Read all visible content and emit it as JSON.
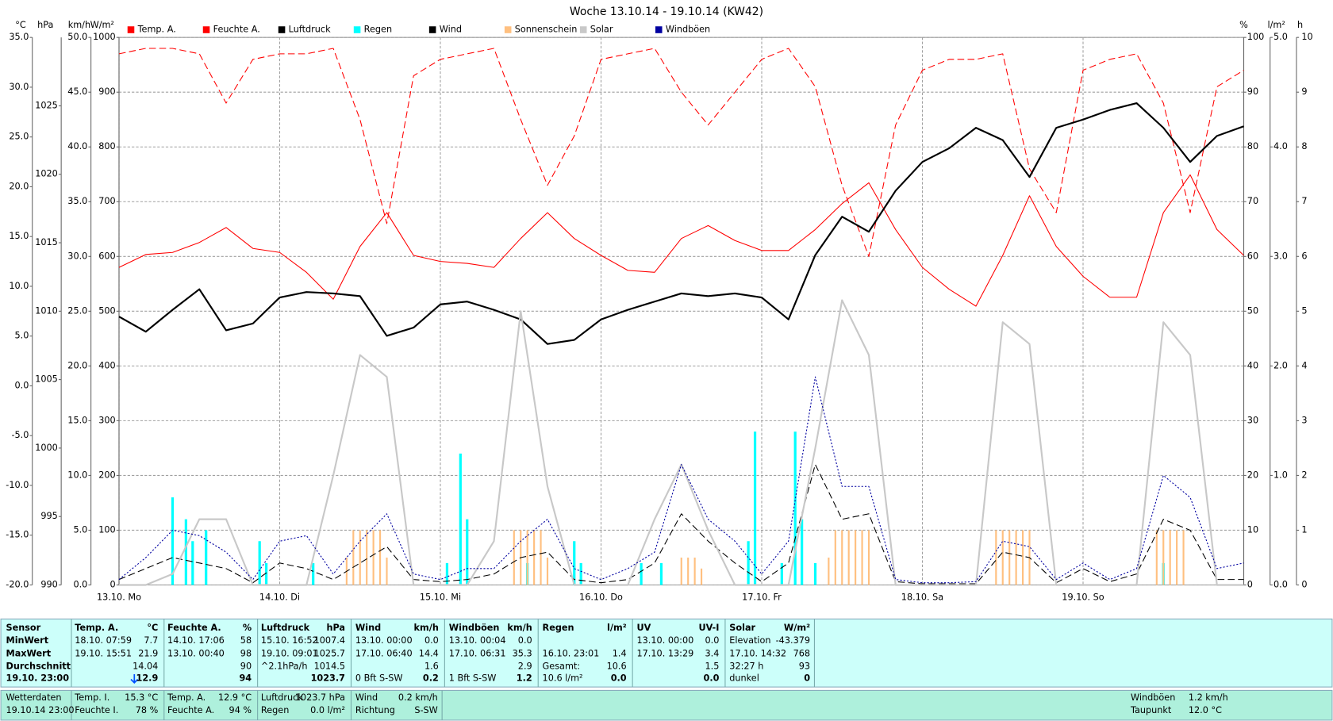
{
  "chart_data": {
    "type": "line",
    "title": "Woche 13.10.14 - 19.10.14 (KW42)",
    "x": [
      0,
      4,
      8,
      12,
      16,
      20,
      24,
      28,
      32,
      36,
      40,
      44,
      48,
      52,
      56,
      60,
      64,
      68,
      72,
      76,
      80,
      84,
      88,
      92,
      96,
      100,
      104,
      108,
      112,
      116,
      120,
      124,
      128,
      132,
      136,
      140,
      144,
      148,
      152,
      156,
      160,
      164,
      168
    ],
    "xlim": [
      0,
      168
    ],
    "xticks": [
      {
        "value": 0,
        "label": "13.10. Mo"
      },
      {
        "value": 24,
        "label": "14.10. Di"
      },
      {
        "value": 48,
        "label": "15.10. Mi"
      },
      {
        "value": 72,
        "label": "16.10. Do"
      },
      {
        "value": 96,
        "label": "17.10. Fr"
      },
      {
        "value": 120,
        "label": "18.10. Sa"
      },
      {
        "value": 144,
        "label": "19.10. So"
      }
    ],
    "grid": true,
    "axes": [
      {
        "unit": "°C",
        "color": "#ff0000",
        "ylim": [
          -20,
          35
        ],
        "yticks": [
          {
            "value": -20,
            "label": "-20.0"
          },
          {
            "value": -15,
            "label": "-15.0"
          },
          {
            "value": -10,
            "label": "-10.0"
          },
          {
            "value": -5,
            "label": "-5.0"
          },
          {
            "value": 0,
            "label": "0.0"
          },
          {
            "value": 5,
            "label": "5.0"
          },
          {
            "value": 10,
            "label": "10.0"
          },
          {
            "value": 15,
            "label": "15.0"
          },
          {
            "value": 20,
            "label": "20.0"
          },
          {
            "value": 25,
            "label": "25.0"
          },
          {
            "value": 30,
            "label": "30.0"
          },
          {
            "value": 35,
            "label": "35.0"
          }
        ]
      },
      {
        "unit": "hPa",
        "color": "#000000",
        "ylim": [
          990,
          1030
        ],
        "yticks": [
          990,
          995,
          1000,
          1005,
          1010,
          1015,
          1020,
          1025
        ]
      },
      {
        "unit": "km/h",
        "color": "#000000",
        "ylim": [
          0,
          50
        ],
        "yticks": [
          {
            "value": 0,
            "label": "0.0"
          },
          {
            "value": 5,
            "label": "5.0"
          },
          {
            "value": 10,
            "label": "10.0"
          },
          {
            "value": 15,
            "label": "15.0"
          },
          {
            "value": 20,
            "label": "20.0"
          },
          {
            "value": 25,
            "label": "25.0"
          },
          {
            "value": 30,
            "label": "30.0"
          },
          {
            "value": 35,
            "label": "35.0"
          },
          {
            "value": 40,
            "label": "40.0"
          },
          {
            "value": 45,
            "label": "45.0"
          },
          {
            "value": 50,
            "label": "50.0"
          }
        ]
      },
      {
        "unit": "W/m²",
        "color": "#c8c8c8",
        "ylim": [
          0,
          1000
        ],
        "yticks": [
          0,
          100,
          200,
          300,
          400,
          500,
          600,
          700,
          800,
          900,
          1000
        ]
      },
      {
        "unit": "%",
        "color": "#ff0000",
        "ylim": [
          0,
          100
        ],
        "yticks": [
          0,
          10,
          20,
          30,
          40,
          50,
          60,
          70,
          80,
          90,
          100
        ]
      },
      {
        "unit": "l/m²",
        "color": "#00e0e0",
        "ylim": [
          0,
          5
        ],
        "yticks": [
          {
            "value": 0,
            "label": "0.0"
          },
          {
            "value": 1,
            "label": "1.0"
          },
          {
            "value": 2,
            "label": "2.0"
          },
          {
            "value": 3,
            "label": "3.0"
          },
          {
            "value": 4,
            "label": "4.0"
          },
          {
            "value": 5,
            "label": "5.0"
          }
        ]
      },
      {
        "unit": "h",
        "color": "#f0c070",
        "ylim": [
          0,
          10
        ],
        "yticks": [
          0,
          1,
          2,
          3,
          4,
          5,
          6,
          7,
          8,
          9,
          10
        ]
      }
    ],
    "series": [
      {
        "name": "Temp. A.",
        "color": "#ff0000",
        "axis": "°C",
        "style": "solid",
        "line_width": 1,
        "values": [
          11.9,
          13.2,
          13.4,
          14.4,
          15.9,
          13.8,
          13.4,
          11.4,
          8.7,
          14.0,
          17.4,
          13.1,
          12.5,
          12.3,
          11.9,
          14.8,
          17.4,
          14.8,
          13.1,
          11.6,
          11.4,
          14.8,
          16.1,
          14.6,
          13.6,
          13.6,
          15.7,
          18.3,
          20.4,
          15.7,
          11.9,
          9.7,
          8.0,
          13.1,
          19.1,
          14.0,
          11.0,
          8.9,
          8.9,
          17.4,
          21.2,
          15.7,
          13.1
        ]
      },
      {
        "name": "Feuchte A.",
        "color": "#ff0000",
        "axis": "%",
        "style": "dashed",
        "line_width": 1,
        "values": [
          97,
          98,
          98,
          97,
          88,
          96,
          97,
          97,
          98,
          85,
          66,
          93,
          96,
          97,
          98,
          85,
          73,
          82,
          96,
          97,
          98,
          90,
          84,
          90,
          96,
          98,
          91,
          73,
          60,
          84,
          94,
          96,
          96,
          97,
          76,
          68,
          94,
          96,
          97,
          88,
          68,
          91,
          94
        ]
      },
      {
        "name": "Luftdruck",
        "color": "#000000",
        "axis": "hPa",
        "style": "solid",
        "line_width": 2,
        "values": [
          1009.6,
          1008.5,
          1010.1,
          1011.6,
          1008.6,
          1009.1,
          1011.0,
          1011.4,
          1011.3,
          1011.1,
          1008.2,
          1008.8,
          1010.5,
          1010.7,
          1010.1,
          1009.4,
          1007.6,
          1007.9,
          1009.4,
          1010.1,
          1010.7,
          1011.3,
          1011.1,
          1011.3,
          1011.0,
          1009.4,
          1014.1,
          1016.9,
          1015.8,
          1018.8,
          1020.9,
          1021.9,
          1023.4,
          1022.5,
          1019.8,
          1023.4,
          1024.0,
          1024.7,
          1025.2,
          1023.4,
          1020.9,
          1022.8,
          1023.5
        ]
      },
      {
        "name": "Regen",
        "color": "#00ffff",
        "axis": "l/m²",
        "style": "bar",
        "line_width": 3,
        "x": [
          8,
          10,
          11,
          13,
          21,
          22,
          29,
          49,
          51,
          52,
          61,
          68,
          69,
          78,
          81,
          94,
          95,
          99,
          101,
          102,
          104,
          156
        ],
        "values": [
          0.8,
          0.6,
          0.4,
          0.5,
          0.4,
          0.2,
          0.2,
          0.2,
          1.2,
          0.6,
          0.2,
          0.4,
          0.2,
          0.2,
          0.2,
          0.4,
          1.4,
          0.2,
          1.4,
          0.6,
          0.2,
          0.2
        ]
      },
      {
        "name": "Wind",
        "color": "#000000",
        "axis": "km/h",
        "style": "dashed",
        "line_width": 1,
        "values": [
          0.5,
          1.5,
          2.5,
          2.0,
          1.5,
          0.2,
          2.0,
          1.5,
          0.5,
          2.0,
          3.5,
          0.5,
          0.3,
          0.5,
          1.0,
          2.5,
          3.0,
          0.5,
          0.2,
          0.5,
          2.0,
          6.5,
          4.0,
          2.0,
          0.3,
          2.0,
          11.0,
          6.0,
          6.5,
          0.3,
          0.1,
          0.1,
          0.1,
          3.0,
          2.5,
          0.2,
          1.5,
          0.3,
          1.0,
          6.0,
          5.0,
          0.5,
          0.5
        ]
      },
      {
        "name": "Sonnenschein",
        "color": "#ffc080",
        "axis": "h",
        "style": "bar",
        "line_width": 2,
        "x": [
          34,
          35,
          36,
          37,
          38,
          39,
          40,
          59,
          60,
          61,
          62,
          63,
          64,
          84,
          85,
          86,
          87,
          106,
          107,
          108,
          109,
          110,
          111,
          112,
          131,
          132,
          133,
          134,
          135,
          136,
          155,
          156,
          157,
          158,
          159
        ],
        "values": [
          0.5,
          1,
          1,
          1,
          1,
          1,
          0.5,
          1,
          1,
          1,
          1,
          1,
          0.5,
          0.5,
          0.5,
          0.5,
          0.3,
          0.5,
          1,
          1,
          1,
          1,
          1,
          1,
          1,
          1,
          1,
          1,
          1,
          1,
          1,
          1,
          1,
          1,
          1
        ]
      },
      {
        "name": "Solar",
        "color": "#c8c8c8",
        "axis": "W/m²",
        "style": "solid",
        "line_width": 2,
        "values": [
          0,
          0,
          20,
          120,
          120,
          0,
          0,
          0,
          200,
          420,
          380,
          0,
          0,
          0,
          80,
          500,
          180,
          0,
          0,
          0,
          120,
          220,
          100,
          0,
          0,
          0,
          250,
          520,
          420,
          0,
          0,
          0,
          0,
          480,
          440,
          0,
          0,
          0,
          0,
          480,
          420,
          0,
          0
        ]
      },
      {
        "name": "Windböen",
        "color": "#0000a0",
        "axis": "km/h",
        "style": "dotted",
        "line_width": 1,
        "values": [
          0.5,
          2.5,
          5.0,
          4.5,
          3.0,
          0.5,
          4.0,
          4.5,
          1.0,
          4.0,
          6.5,
          1.0,
          0.5,
          1.5,
          1.5,
          4.0,
          6.0,
          1.5,
          0.5,
          1.5,
          3.0,
          11.0,
          6.0,
          4.0,
          1.0,
          4.0,
          19.0,
          9.0,
          9.0,
          0.5,
          0.2,
          0.2,
          0.3,
          4.0,
          3.5,
          0.5,
          2.0,
          0.5,
          1.5,
          10.0,
          8.0,
          1.5,
          2.0
        ]
      }
    ]
  },
  "stats": {
    "row_labels": [
      "Sensor",
      "MinWert",
      "MaxWert",
      "Durchschnitt",
      "19.10. 23:00"
    ],
    "columns": [
      {
        "title": "Temp. A.",
        "unit": "°C",
        "rows": [
          [
            "18.10.  07:59",
            "7.7"
          ],
          [
            "19.10.  15:51",
            "21.9"
          ],
          [
            "14.04"
          ],
          [
            "12.9"
          ]
        ]
      },
      {
        "title": "Feuchte A.",
        "unit": "%",
        "rows": [
          [
            "14.10.  17:06",
            "58"
          ],
          [
            "13.10.  00:40",
            "98"
          ],
          [
            "90"
          ],
          [
            "94"
          ]
        ]
      },
      {
        "title": "Luftdruck",
        "unit": "hPa",
        "rows": [
          [
            "15.10.  16:52",
            "1007.4"
          ],
          [
            "19.10.  09:01",
            "1025.7"
          ],
          [
            "^2.1hPa/h",
            "1014.5"
          ],
          [
            "1023.7"
          ]
        ]
      },
      {
        "title": "Wind",
        "unit": "km/h",
        "rows": [
          [
            "13.10.  00:00",
            "0.0"
          ],
          [
            "17.10.  06:40",
            "14.4"
          ],
          [
            "1.6"
          ],
          [
            "0 Bft S-SW",
            "0.2"
          ]
        ]
      },
      {
        "title": "Windböen",
        "unit": "km/h",
        "rows": [
          [
            "13.10.  00:04",
            "0.0"
          ],
          [
            "17.10.  06:31",
            "35.3"
          ],
          [
            "2.9"
          ],
          [
            "1 Bft S-SW",
            "1.2"
          ]
        ]
      },
      {
        "title": "Regen",
        "unit": "l/m²",
        "rows": [
          null,
          [
            "16.10.  23:01",
            "1.4"
          ],
          [
            "Gesamt:",
            "10.6"
          ],
          [
            "10.6 l/m²",
            "0.0"
          ]
        ]
      },
      {
        "title": "UV",
        "unit": "UV-I",
        "rows": [
          [
            "13.10.  00:00",
            "0.0"
          ],
          [
            "17.10.  13:29",
            "3.4"
          ],
          [
            "1.5"
          ],
          [
            "0.0"
          ]
        ]
      },
      {
        "title": "Solar",
        "unit": "W/m²",
        "rows": [
          [
            "Elevation",
            "-43.379"
          ],
          [
            "17.10.  14:32",
            "768"
          ],
          [
            "32:27 h",
            "93"
          ],
          [
            "dunkel",
            "0"
          ]
        ]
      }
    ]
  },
  "footer": {
    "groups": [
      {
        "rows": [
          [
            "Wetterdaten"
          ],
          [
            "19.10.14 23:00"
          ]
        ]
      },
      {
        "rows": [
          [
            "Temp. I.",
            "15.3 °C"
          ],
          [
            "Feuchte I.",
            "78 %"
          ]
        ]
      },
      {
        "rows": [
          [
            "Temp. A.",
            "12.9 °C"
          ],
          [
            "Feuchte A.",
            "94 %"
          ]
        ]
      },
      {
        "rows": [
          [
            "Luftdruck",
            "1023.7 hPa"
          ],
          [
            "Regen",
            "0.0 l/m²"
          ]
        ]
      },
      {
        "rows": [
          [
            "Wind",
            "0.2 km/h"
          ],
          [
            "Richtung",
            "S-SW"
          ]
        ]
      },
      {
        "rows": [
          [
            "Windböen",
            "1.2 km/h"
          ],
          [
            "Taupunkt",
            "12.0 °C"
          ]
        ]
      }
    ]
  }
}
